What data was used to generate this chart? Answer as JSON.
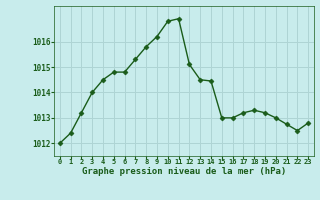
{
  "x": [
    0,
    1,
    2,
    3,
    4,
    5,
    6,
    7,
    8,
    9,
    10,
    11,
    12,
    13,
    14,
    15,
    16,
    17,
    18,
    19,
    20,
    21,
    22,
    23
  ],
  "y": [
    1012.0,
    1012.4,
    1013.2,
    1014.0,
    1014.5,
    1014.8,
    1014.8,
    1015.3,
    1015.8,
    1016.2,
    1016.8,
    1016.9,
    1015.1,
    1014.5,
    1014.45,
    1013.0,
    1013.0,
    1013.2,
    1013.3,
    1013.2,
    1013.0,
    1012.75,
    1012.5,
    1012.8
  ],
  "line_color": "#1a5c1a",
  "marker": "D",
  "marker_size": 2.5,
  "bg_color": "#c8ecec",
  "grid_color": "#aed4d4",
  "xlabel": "Graphe pression niveau de la mer (hPa)",
  "xlabel_color": "#1a5c1a",
  "tick_color": "#1a5c1a",
  "ylim": [
    1011.5,
    1017.4
  ],
  "yticks": [
    1012,
    1013,
    1014,
    1015,
    1016
  ],
  "xticks": [
    0,
    1,
    2,
    3,
    4,
    5,
    6,
    7,
    8,
    9,
    10,
    11,
    12,
    13,
    14,
    15,
    16,
    17,
    18,
    19,
    20,
    21,
    22,
    23
  ]
}
